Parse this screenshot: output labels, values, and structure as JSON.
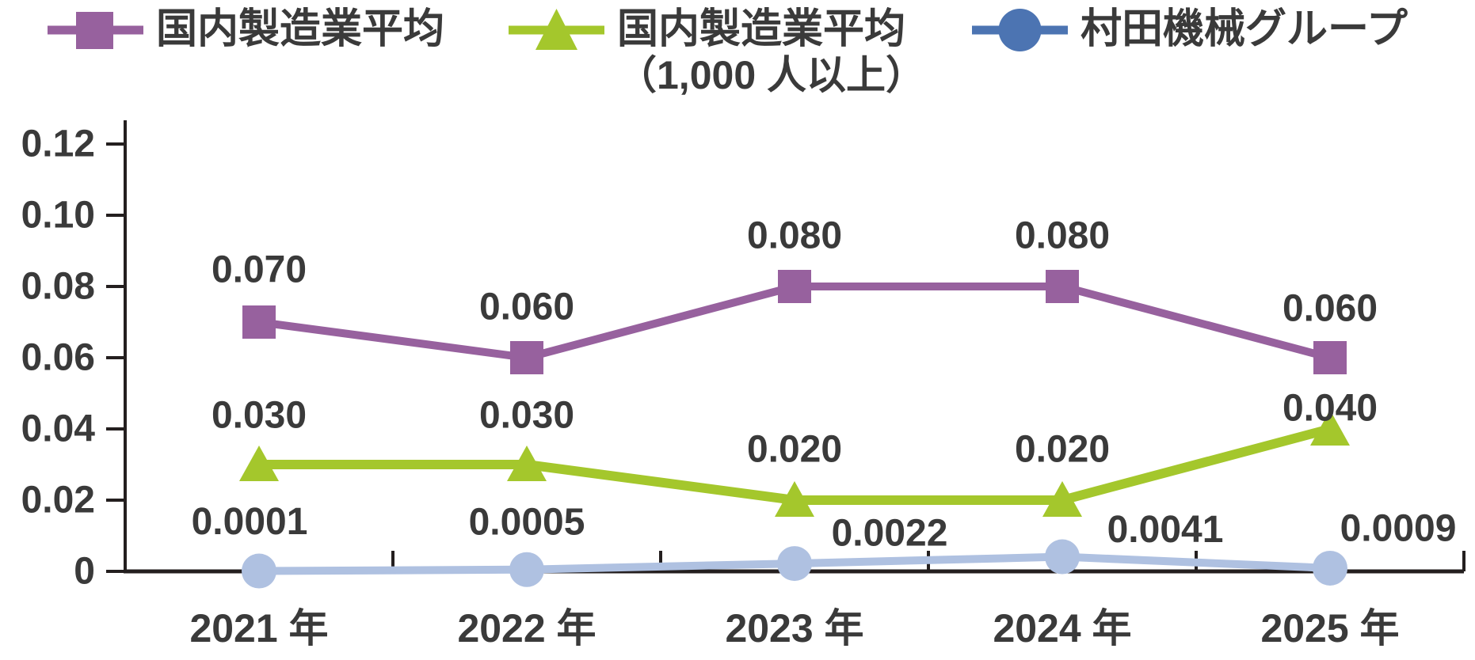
{
  "chart_data": {
    "type": "line",
    "title": "",
    "xlabel": "",
    "ylabel": "",
    "grid": false,
    "legend_position": "top",
    "categories": [
      "2021 年",
      "2022 年",
      "2023 年",
      "2024 年",
      "2025 年"
    ],
    "yticks": [
      "0",
      "0.02",
      "0.04",
      "0.06",
      "0.08",
      "0.10",
      "0.12"
    ],
    "ylim": [
      0,
      0.12
    ],
    "colors": {
      "text": "#3A3A3A",
      "axis": "#241F1F",
      "background": "#FFFFFF"
    },
    "series": [
      {
        "name": "国内製造業平均",
        "marker": "square",
        "color": "#97619E",
        "legend_color": "#97619E",
        "values": [
          0.07,
          0.06,
          0.08,
          0.08,
          0.06
        ],
        "labels": [
          "0.070",
          "0.060",
          "0.080",
          "0.080",
          "0.060"
        ],
        "label_dx": [
          0,
          0,
          0,
          0,
          0
        ],
        "label_dy": [
          -66,
          -64,
          -64,
          -64,
          -62
        ]
      },
      {
        "name": "国内製造業平均",
        "name_line2": "（1,000 人以上）",
        "marker": "triangle",
        "color": "#A4C72C",
        "legend_color": "#A4C72C",
        "values": [
          0.03,
          0.03,
          0.02,
          0.02,
          0.04
        ],
        "labels": [
          "0.030",
          "0.030",
          "0.020",
          "0.020",
          "0.040"
        ],
        "label_dx": [
          0,
          0,
          0,
          0,
          0
        ],
        "label_dy": [
          -62,
          -62,
          -64,
          -64,
          -26
        ]
      },
      {
        "name": "村田機械グループ",
        "marker": "circle",
        "color": "#AFC1E1",
        "legend_color": "#4C74B2",
        "values": [
          0.0001,
          0.0005,
          0.0022,
          0.0041,
          0.0009
        ],
        "labels": [
          "0.0001",
          "0.0005",
          "0.0022",
          "0.0041",
          "0.0009"
        ],
        "label_dx": [
          -12,
          0,
          120,
          130,
          86
        ],
        "label_dy": [
          -62,
          -60,
          -38,
          -34,
          -50
        ]
      }
    ]
  }
}
